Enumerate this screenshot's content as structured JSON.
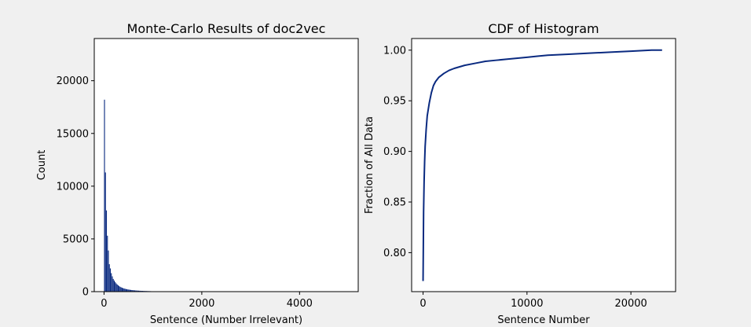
{
  "chart_data": [
    {
      "type": "bar",
      "title": "Monte-Carlo Results of doc2vec",
      "xlabel": "Sentence (Number Irrelevant)",
      "ylabel": "Count",
      "xlim": [
        -200,
        5200
      ],
      "ylim": [
        0,
        24000
      ],
      "xticks": [
        0,
        2000,
        4000
      ],
      "yticks": [
        0,
        5000,
        10000,
        15000,
        20000
      ],
      "bar_color": "#0a2a80",
      "bar_width": 18,
      "x": [
        0,
        20,
        40,
        60,
        80,
        100,
        120,
        140,
        160,
        180,
        200,
        220,
        240,
        260,
        280,
        300,
        320,
        340,
        360,
        380,
        400,
        420,
        440,
        460,
        480,
        500,
        520,
        540,
        560,
        580,
        600,
        620,
        640,
        660,
        680,
        700,
        720,
        740,
        760,
        780,
        800,
        820,
        840,
        860,
        880,
        900,
        920,
        940
      ],
      "values": [
        18200,
        11300,
        7700,
        5300,
        3900,
        2600,
        2200,
        1750,
        1450,
        1200,
        1050,
        900,
        780,
        680,
        600,
        520,
        460,
        410,
        370,
        330,
        300,
        270,
        245,
        225,
        205,
        190,
        175,
        160,
        148,
        138,
        128,
        118,
        110,
        103,
        96,
        90,
        84,
        79,
        74,
        70,
        66,
        62,
        58,
        55,
        52,
        49,
        46,
        43
      ]
    },
    {
      "type": "line",
      "title": "CDF of Histogram",
      "xlabel": "Sentence Number",
      "ylabel": "Fraction of All Data",
      "xlim": [
        -1100,
        24300
      ],
      "ylim": [
        0.7615,
        1.0115
      ],
      "xticks": [
        0,
        10000,
        20000
      ],
      "yticks": [
        0.8,
        0.85,
        0.9,
        0.95,
        1.0
      ],
      "line_color": "#0a2a80",
      "x": [
        0,
        50,
        100,
        150,
        200,
        300,
        400,
        600,
        800,
        1000,
        1200,
        1500,
        2000,
        2500,
        3000,
        4000,
        5000,
        6000,
        7000,
        8000,
        9000,
        10000,
        11000,
        12000,
        14000,
        16000,
        18000,
        20000,
        22000,
        23000
      ],
      "y": [
        0.772,
        0.84,
        0.87,
        0.89,
        0.905,
        0.922,
        0.935,
        0.948,
        0.958,
        0.965,
        0.969,
        0.973,
        0.977,
        0.98,
        0.982,
        0.985,
        0.987,
        0.989,
        0.99,
        0.991,
        0.992,
        0.993,
        0.994,
        0.995,
        0.996,
        0.997,
        0.998,
        0.999,
        1.0,
        1.0
      ]
    }
  ]
}
